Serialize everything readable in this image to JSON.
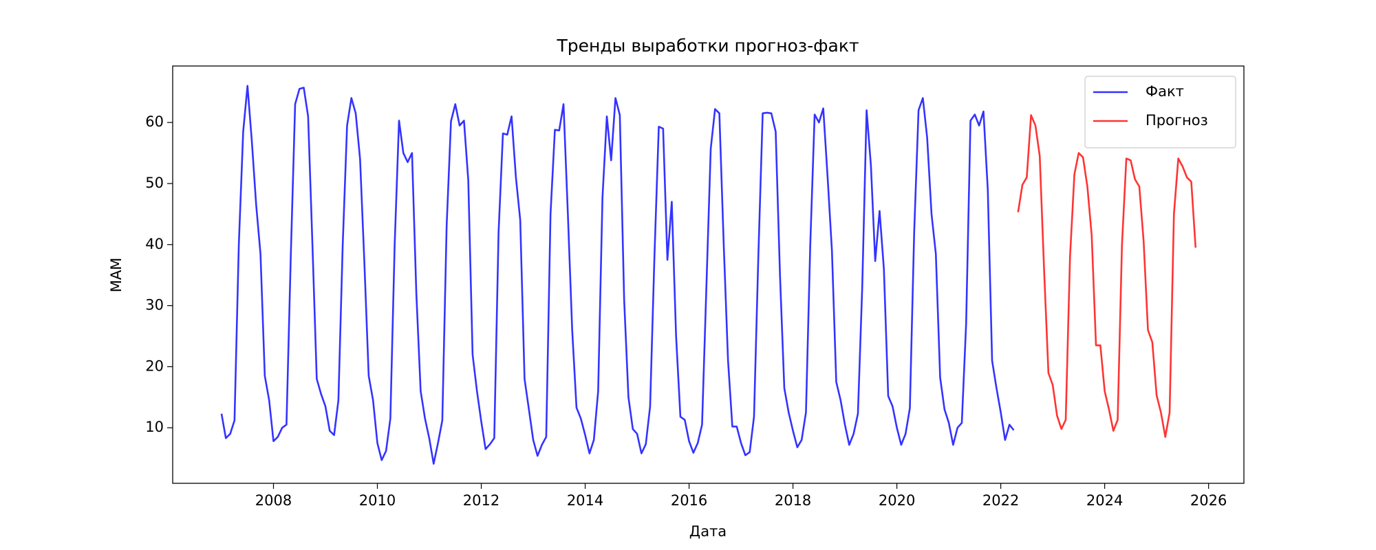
{
  "chart_data": {
    "type": "line",
    "title": "Тренды выработки прогноз-факт",
    "x_label": "Дата",
    "y_label": "МАМ",
    "xlim": [
      2006.06,
      2026.68
    ],
    "ylim": [
      0.9,
      69.25
    ],
    "xticks": [
      2008,
      2010,
      2012,
      2014,
      2016,
      2018,
      2020,
      2022,
      2024,
      2026
    ],
    "yticks": [
      10,
      20,
      30,
      40,
      50,
      60
    ],
    "legend": "upper right",
    "series": [
      {
        "name": "Факт",
        "color": "#0000ff",
        "x": [
          2007,
          2007.083,
          2007.167,
          2007.25,
          2007.333,
          2007.417,
          2007.5,
          2007.583,
          2007.667,
          2007.75,
          2007.833,
          2007.917,
          2008,
          2008.083,
          2008.167,
          2008.25,
          2008.333,
          2008.417,
          2008.5,
          2008.583,
          2008.667,
          2008.75,
          2008.833,
          2008.917,
          2009,
          2009.083,
          2009.167,
          2009.25,
          2009.333,
          2009.417,
          2009.5,
          2009.583,
          2009.667,
          2009.75,
          2009.833,
          2009.917,
          2010,
          2010.083,
          2010.167,
          2010.25,
          2010.333,
          2010.417,
          2010.5,
          2010.583,
          2010.667,
          2010.75,
          2010.833,
          2010.917,
          2011,
          2011.083,
          2011.167,
          2011.25,
          2011.333,
          2011.417,
          2011.5,
          2011.583,
          2011.667,
          2011.75,
          2011.833,
          2011.917,
          2012,
          2012.083,
          2012.167,
          2012.25,
          2012.333,
          2012.417,
          2012.5,
          2012.583,
          2012.667,
          2012.75,
          2012.833,
          2012.917,
          2013,
          2013.083,
          2013.167,
          2013.25,
          2013.333,
          2013.417,
          2013.5,
          2013.583,
          2013.667,
          2013.75,
          2013.833,
          2013.917,
          2014,
          2014.083,
          2014.167,
          2014.25,
          2014.333,
          2014.417,
          2014.5,
          2014.583,
          2014.667,
          2014.75,
          2014.833,
          2014.917,
          2015,
          2015.083,
          2015.167,
          2015.25,
          2015.333,
          2015.417,
          2015.5,
          2015.583,
          2015.667,
          2015.75,
          2015.833,
          2015.917,
          2016,
          2016.083,
          2016.167,
          2016.25,
          2016.333,
          2016.417,
          2016.5,
          2016.583,
          2016.667,
          2016.75,
          2016.833,
          2016.917,
          2017,
          2017.083,
          2017.167,
          2017.25,
          2017.333,
          2017.417,
          2017.5,
          2017.583,
          2017.667,
          2017.75,
          2017.833,
          2017.917,
          2018,
          2018.083,
          2018.167,
          2018.25,
          2018.333,
          2018.417,
          2018.5,
          2018.583,
          2018.667,
          2018.75,
          2018.833,
          2018.917,
          2019,
          2019.083,
          2019.167,
          2019.25,
          2019.333,
          2019.417,
          2019.5,
          2019.583,
          2019.667,
          2019.75,
          2019.833,
          2019.917,
          2020,
          2020.083,
          2020.167,
          2020.25,
          2020.333,
          2020.417,
          2020.5,
          2020.583,
          2020.667,
          2020.75,
          2020.833,
          2020.917,
          2021,
          2021.083,
          2021.167,
          2021.25,
          2021.333,
          2021.417,
          2021.5,
          2021.583,
          2021.667,
          2021.75,
          2021.833,
          2021.917,
          2022,
          2022.083,
          2022.167,
          2022.25
        ],
        "values": [
          12.3,
          8.3,
          9,
          11.2,
          40,
          58.5,
          66,
          57,
          46.5,
          38.5,
          18.5,
          14.5,
          7.8,
          8.5,
          10,
          10.5,
          38,
          63,
          65.5,
          65.7,
          61,
          40,
          18,
          15.5,
          13.5,
          9.5,
          8.8,
          14.5,
          40,
          59.5,
          64,
          61.5,
          54,
          37,
          18.5,
          14.5,
          7.5,
          4.7,
          6.2,
          11.5,
          40,
          60.3,
          55,
          53.5,
          55,
          32,
          16,
          11.5,
          8.2,
          4.1,
          7.5,
          11.2,
          43,
          60.2,
          63,
          59.5,
          60.3,
          50.5,
          22,
          16,
          11,
          6.5,
          7.3,
          8.3,
          42,
          58.2,
          58,
          61,
          51,
          44,
          18,
          13,
          8,
          5.4,
          7.2,
          8.5,
          45,
          58.8,
          58.7,
          63,
          45,
          26,
          13.3,
          11.5,
          8.8,
          5.8,
          8,
          16,
          47.7,
          61,
          53.8,
          64,
          61.2,
          31,
          15,
          9.8,
          9,
          5.8,
          7.3,
          13.5,
          38,
          59.3,
          59,
          37.5,
          47,
          25,
          11.8,
          11.3,
          7.8,
          5.9,
          7.5,
          10.5,
          33,
          55.7,
          62.2,
          61.5,
          40,
          21,
          10.2,
          10.2,
          7.5,
          5.5,
          6,
          11.8,
          38,
          61.5,
          61.6,
          61.5,
          58.5,
          35,
          16.5,
          12.5,
          9.5,
          6.8,
          8,
          12.5,
          40,
          61.3,
          60,
          62.3,
          51,
          39,
          17.5,
          14.5,
          10.5,
          7.2,
          9,
          12.3,
          33,
          62,
          53,
          37.3,
          45.5,
          36,
          15.2,
          13.5,
          10,
          7.2,
          9,
          13.2,
          42,
          62,
          64,
          57.5,
          45,
          38.5,
          18.2,
          13,
          10.8,
          7.2,
          10,
          10.8,
          27,
          60.3,
          61.3,
          59.5,
          61.8,
          49,
          21,
          16.5,
          12.5,
          8,
          10.5,
          9.6
        ]
      },
      {
        "name": "Прогноз",
        "color": "#ff0000",
        "x": [
          2022.333,
          2022.417,
          2022.5,
          2022.583,
          2022.667,
          2022.75,
          2022.833,
          2022.917,
          2023,
          2023.083,
          2023.167,
          2023.25,
          2023.333,
          2023.417,
          2023.5,
          2023.583,
          2023.667,
          2023.75,
          2023.833,
          2023.917,
          2024,
          2024.083,
          2024.167,
          2024.25,
          2024.333,
          2024.417,
          2024.5,
          2024.583,
          2024.667,
          2024.75,
          2024.833,
          2024.917,
          2025,
          2025.083,
          2025.167,
          2025.25,
          2025.333,
          2025.417,
          2025.5,
          2025.583,
          2025.667,
          2025.75
        ],
        "values": [
          45.3,
          49.8,
          51,
          61.2,
          59.5,
          54.5,
          36,
          19,
          17,
          12,
          9.8,
          11.3,
          38,
          51.5,
          55,
          54.3,
          49.5,
          41.5,
          23.5,
          23.5,
          16,
          13,
          9.5,
          11.3,
          40,
          54.1,
          53.8,
          50.7,
          49.5,
          40.5,
          26,
          24,
          15.3,
          12.5,
          8.5,
          12.5,
          45,
          54.1,
          52.8,
          51,
          50.3,
          39.5
        ]
      }
    ]
  }
}
